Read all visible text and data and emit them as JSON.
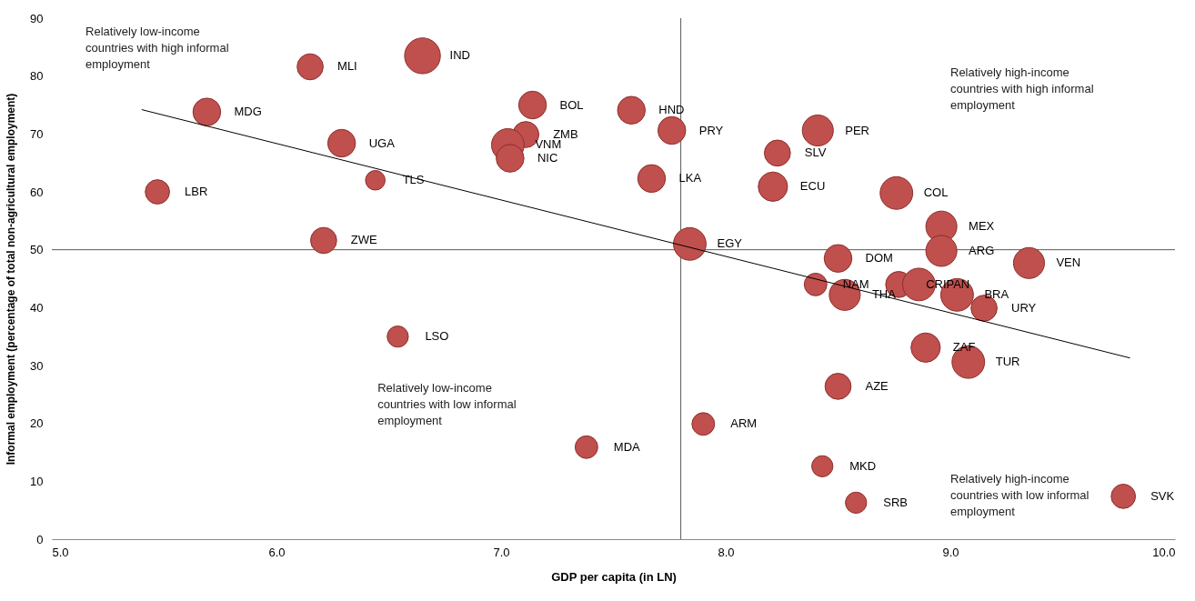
{
  "chart_data": {
    "type": "bubble",
    "xlabel": "GDP per capita (in LN)",
    "ylabel": "Informal employment (percentage of total non-agricultural employment)",
    "xlim": [
      5,
      10
    ],
    "ylim": [
      0,
      90
    ],
    "xticks": [
      {
        "value": 5,
        "label": "5.0"
      },
      {
        "value": 6,
        "label": "6.0"
      },
      {
        "value": 7,
        "label": "7.0"
      },
      {
        "value": 8,
        "label": "8.0"
      },
      {
        "value": 9,
        "label": "9.0"
      },
      {
        "value": 10,
        "label": "10.0"
      }
    ],
    "yticks": [
      0,
      10,
      20,
      30,
      40,
      50,
      60,
      70,
      80,
      90
    ],
    "grid": false,
    "series": [
      {
        "color": "#c0504d",
        "x": [
          5.47,
          5.69,
          6.15,
          6.65,
          6.29,
          6.44,
          6.21,
          6.54,
          7.14,
          7.11,
          7.03,
          7.04,
          7.38,
          7.58,
          7.76,
          7.67,
          7.84,
          7.9,
          8.41,
          8.23,
          8.21,
          8.76,
          8.96,
          8.96,
          8.5,
          8.4,
          8.53,
          8.77,
          8.86,
          9.03,
          9.15,
          9.35,
          8.89,
          9.08,
          8.5,
          8.43,
          8.58,
          9.77
        ],
        "values": [
          60,
          73.8,
          81.6,
          83.5,
          68.4,
          62,
          51.6,
          35,
          75,
          69.9,
          68.1,
          65.8,
          15.9,
          74.1,
          70.6,
          62.3,
          51,
          19.9,
          70.6,
          66.7,
          60.9,
          59.8,
          54,
          49.8,
          48.5,
          44,
          42.2,
          44,
          44,
          42.2,
          39.9,
          47.7,
          33.1,
          30.6,
          26.4,
          12.6,
          6.3,
          7.4
        ],
        "sizes": [
          0.46,
          0.6,
          0.53,
          1,
          0.6,
          0.3,
          0.53,
          0.35,
          0.6,
          0.53,
          0.83,
          0.6,
          0.4,
          0.6,
          0.6,
          0.6,
          0.83,
          0.4,
          0.75,
          0.53,
          0.67,
          0.83,
          0.75,
          0.75,
          0.6,
          0.4,
          0.75,
          0.53,
          0.83,
          0.83,
          0.53,
          0.75,
          0.67,
          0.83,
          0.53,
          0.35,
          0.35,
          0.46
        ],
        "value_labels": [
          "LBR",
          "MDG",
          "MLI",
          "IND",
          "UGA",
          "TLS",
          "ZWE",
          "LSO",
          "BOL",
          "ZMB",
          "VNM",
          "NIC",
          "MDA",
          "HND",
          "PRY",
          "LKA",
          "EGY",
          "ARM",
          "PER",
          "SLV",
          "ECU",
          "COL",
          "MEX",
          "ARG",
          "DOM",
          "NAM",
          "THA",
          "CRI",
          "PAN",
          "BRA",
          "URY",
          "VEN",
          "ZAF",
          "TUR",
          "AZE",
          "MKD",
          "SRB",
          "SVK"
        ]
      },
      {
        "type": "line",
        "color": "#000000",
        "x": [
          5.4,
          9.8
        ],
        "values": [
          74.2,
          31.3
        ]
      }
    ],
    "ref_lines": [
      {
        "axis": "x",
        "value": 7.8,
        "color": "#595959"
      },
      {
        "axis": "y",
        "value": 50,
        "color": "#595959"
      }
    ],
    "annotations": [
      "Relatively low-income countries with high informal employment",
      "Relatively high-income countries with high informal employment",
      "Relatively low-income countries with low informal employment",
      "Relatively high-income countries with low informal employment"
    ]
  }
}
